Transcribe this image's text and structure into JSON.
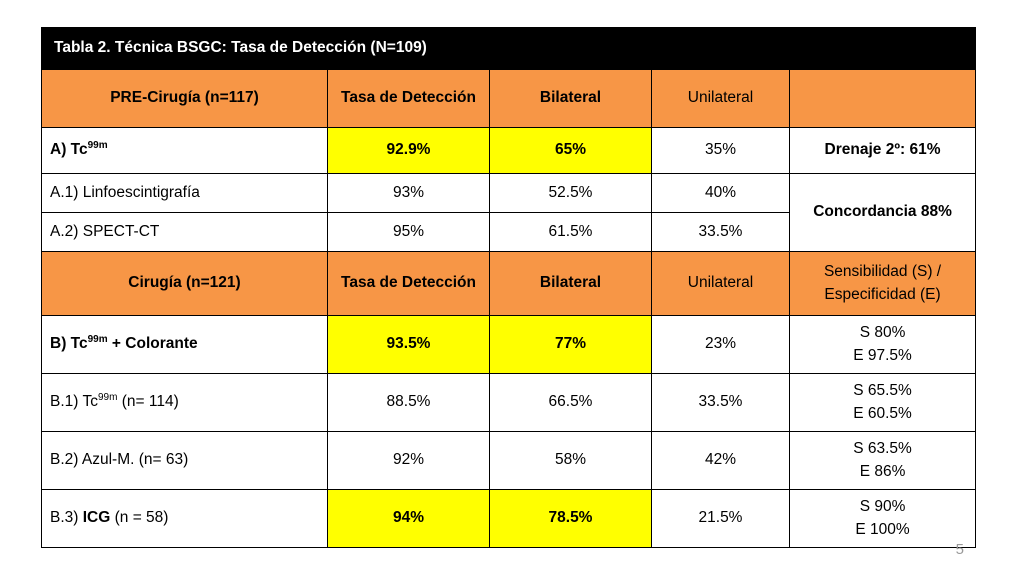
{
  "title": "Tabla 2. Técnica BSGC: Tasa de Detección (N=109)",
  "pre_header": {
    "col1": "PRE-Cirugía   (n=117)",
    "col2": "Tasa de Detección",
    "col3": "Bilateral",
    "col4": "Unilateral",
    "col5": ""
  },
  "row_a": {
    "label_prefix": "A) Tc",
    "label_sup": "99m",
    "tasa": "92.9%",
    "bilateral": "65%",
    "unilateral": "35%",
    "extra": "Drenaje 2º: 61%"
  },
  "row_a1": {
    "label": "A.1) Linfoescintigrafía",
    "tasa": "93%",
    "bilateral": "52.5%",
    "unilateral": "40%"
  },
  "concordancia": "Concordancia 88%",
  "row_a2": {
    "label": "A.2) SPECT-CT",
    "tasa": "95%",
    "bilateral": "61.5%",
    "unilateral": "33.5%"
  },
  "cir_header": {
    "col1": "Cirugía  (n=121)",
    "col2": "Tasa de Detección",
    "col3": "Bilateral",
    "col4": "Unilateral",
    "col5_line1": "Sensibilidad (S) /",
    "col5_line2": "Especificidad (E)"
  },
  "row_b": {
    "label_prefix": "B) Tc",
    "label_sup": "99m",
    "label_suffix": " + Colorante",
    "tasa": "93.5%",
    "bilateral": "77%",
    "unilateral": "23%",
    "s": "S 80%",
    "e": "E 97.5%"
  },
  "row_b1": {
    "label_prefix": "B.1) Tc",
    "label_sup": "99m",
    "label_suffix": " (n= 114)",
    "tasa": "88.5%",
    "bilateral": "66.5%",
    "unilateral": "33.5%",
    "s": "S 65.5%",
    "e": "E 60.5%"
  },
  "row_b2": {
    "label": "B.2) Azul-M. (n= 63)",
    "tasa": "92%",
    "bilateral": "58%",
    "unilateral": "42%",
    "s": "S 63.5%",
    "e": "E 86%"
  },
  "row_b3": {
    "label_prefix": "B.3) ",
    "label_bold": "ICG",
    "label_suffix": " (n = 58)",
    "tasa": "94%",
    "bilateral": "78.5%",
    "unilateral": "21.5%",
    "s": "S 90%",
    "e": "E 100%"
  },
  "page_number": "5"
}
